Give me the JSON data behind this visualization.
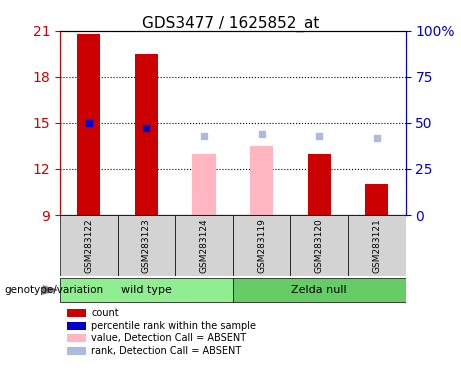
{
  "title": "GDS3477 / 1625852_at",
  "samples": [
    "GSM283122",
    "GSM283123",
    "GSM283124",
    "GSM283119",
    "GSM283120",
    "GSM283121"
  ],
  "groups": [
    "wild type",
    "wild type",
    "wild type",
    "Zelda null",
    "Zelda null",
    "Zelda null"
  ],
  "group_labels": [
    "wild type",
    "Zelda null"
  ],
  "group_colors": [
    "#90EE90",
    "#66CC66"
  ],
  "ylim_left": [
    9,
    21
  ],
  "ylim_right": [
    0,
    100
  ],
  "yticks_left": [
    9,
    12,
    15,
    18,
    21
  ],
  "yticks_right": [
    0,
    25,
    50,
    75,
    100
  ],
  "ytick_labels_right": [
    "0",
    "25",
    "50",
    "75",
    "100%"
  ],
  "bar_values": [
    20.8,
    19.5,
    13.0,
    13.5,
    13.0,
    11.0
  ],
  "bar_colors": [
    "#CC0000",
    "#CC0000",
    "#FFB6C1",
    "#FFB6C1",
    "#CC0000",
    "#CC0000"
  ],
  "bar_absent": [
    false,
    false,
    true,
    true,
    false,
    false
  ],
  "bar_width": 0.4,
  "percentile_values": [
    50,
    47,
    null,
    null,
    null,
    null
  ],
  "percentile_absent_values": [
    null,
    null,
    43,
    44,
    43,
    42
  ],
  "dot_color_present": "#0000CC",
  "dot_color_absent": "#AABBDD",
  "background_color": "#FFFFFF",
  "plot_bg_color": "#FFFFFF",
  "grid_color": "#000000",
  "left_axis_color": "#CC0000",
  "right_axis_color": "#0000CC",
  "sample_bg_color": "#D3D3D3",
  "legend_items": [
    {
      "label": "count",
      "color": "#CC0000",
      "type": "square"
    },
    {
      "label": "percentile rank within the sample",
      "color": "#0000CC",
      "type": "square"
    },
    {
      "label": "value, Detection Call = ABSENT",
      "color": "#FFB6C1",
      "type": "square"
    },
    {
      "label": "rank, Detection Call = ABSENT",
      "color": "#AABBDD",
      "type": "square"
    }
  ]
}
